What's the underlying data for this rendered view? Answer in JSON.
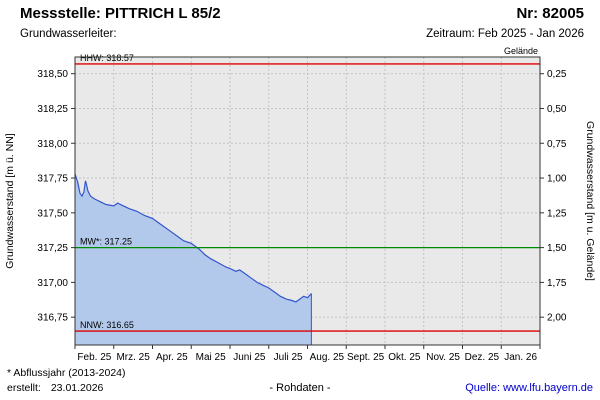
{
  "header": {
    "station": "Messstelle: PITTRICH L 85/2",
    "number": "Nr: 82005",
    "aquifer": "Grundwasserleiter:",
    "period": "Zeitraum: Feb 2025 - Jan 2026"
  },
  "footer": {
    "note": "* Abflussjahr (2013-2024)",
    "created_label": "erstellt:",
    "created_date": "23.01.2026",
    "rohdaten": "- Rohdaten -",
    "source_prefix": "Quelle:",
    "source_link": "www.lfu.bayern.de"
  },
  "chart_data": {
    "type": "area",
    "title": "",
    "x_labels": [
      "Feb. 25",
      "Mrz. 25",
      "Apr. 25",
      "Mai 25",
      "Juni 25",
      "Juli 25",
      "Aug. 25",
      "Sept. 25",
      "Okt. 25",
      "Nov. 25",
      "Dez. 25",
      "Jan. 26"
    ],
    "y_axis_left": {
      "label": "Grundwasserstand [m ü. NN]",
      "min": 316.55,
      "max": 318.62,
      "ticks": [
        316.75,
        317.0,
        317.25,
        317.5,
        317.75,
        318.0,
        318.25,
        318.5
      ]
    },
    "y_axis_right": {
      "label": "Grundwasserstand [m u. Gelände]",
      "ticks": [
        0.25,
        0.5,
        0.75,
        1.0,
        1.25,
        1.5,
        1.75,
        2.0
      ],
      "ground_reference": 318.75
    },
    "ground_label": "Gelände",
    "reference_lines": [
      {
        "name": "HHW",
        "label": "HHW: 318.57",
        "value": 318.57,
        "color": "#dd0000"
      },
      {
        "name": "MW",
        "label": "MW*: 317.25",
        "value": 317.25,
        "color": "#008a00"
      },
      {
        "name": "NNW",
        "label": "NNW: 316.65",
        "value": 316.65,
        "color": "#dd0000"
      }
    ],
    "series": [
      {
        "name": "Grundwasserstand Rohdaten",
        "line_color": "#3355cc",
        "fill_color": "#b3c9ec",
        "x_months": [
          0,
          0.07,
          0.13,
          0.18,
          0.23,
          0.27,
          0.3,
          0.33,
          0.4,
          0.5,
          0.65,
          0.8,
          1.0,
          1.1,
          1.25,
          1.4,
          1.6,
          1.8,
          2.0,
          2.15,
          2.3,
          2.5,
          2.65,
          2.8,
          3.0,
          3.2,
          3.35,
          3.5,
          3.7,
          3.9,
          4.0,
          4.15,
          4.25,
          4.4,
          4.55,
          4.7,
          4.85,
          5.0,
          5.15,
          5.3,
          5.45,
          5.6,
          5.7,
          5.8,
          5.9,
          6.0,
          6.1
        ],
        "values": [
          317.78,
          317.72,
          317.64,
          317.62,
          317.65,
          317.73,
          317.7,
          317.66,
          317.62,
          317.6,
          317.58,
          317.56,
          317.55,
          317.57,
          317.55,
          317.53,
          317.51,
          317.48,
          317.46,
          317.43,
          317.4,
          317.36,
          317.33,
          317.3,
          317.28,
          317.24,
          317.2,
          317.17,
          317.14,
          317.11,
          317.1,
          317.08,
          317.09,
          317.06,
          317.03,
          317.0,
          316.98,
          316.96,
          316.93,
          316.9,
          316.88,
          316.87,
          316.86,
          316.88,
          316.9,
          316.89,
          316.92
        ]
      }
    ],
    "colors": {
      "plot_bg": "#e9e9e9",
      "grid": "#c4c4c4",
      "border": "#333333",
      "tick_text": "#000000"
    }
  }
}
